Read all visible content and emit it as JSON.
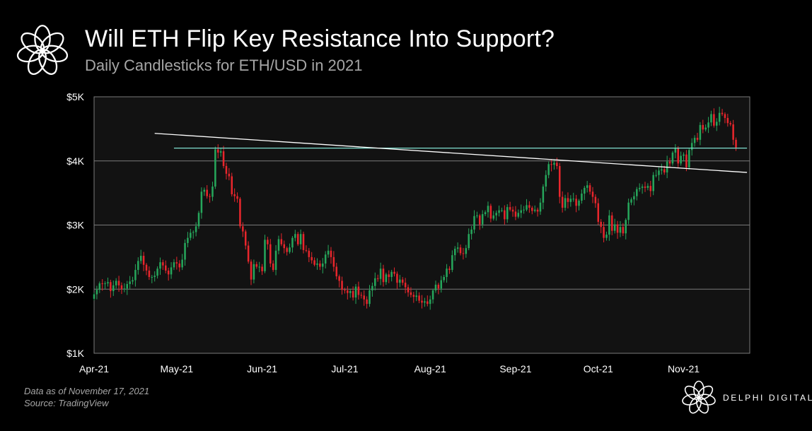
{
  "header": {
    "title": "Will ETH Flip Key Resistance Into Support?",
    "subtitle": "Daily Candlesticks for ETH/USD in 2021",
    "logo_icon": "delphi-flower-icon"
  },
  "footer": {
    "note_line1": "Data as of November 17, 2021",
    "note_line2": "Source: TradingView",
    "brand_name": "DELPHI DIGITAL",
    "brand_icon": "delphi-flower-icon"
  },
  "colors": {
    "background": "#000000",
    "plot_background": "#121212",
    "up_candle": "#26a65b",
    "down_candle": "#e8262c",
    "resistance_line": "#7fe0d0",
    "trend_line": "#ffffff",
    "grid": "#7a7a7a"
  },
  "chart_data": {
    "type": "candlestick",
    "title": "Will ETH Flip Key Resistance Into Support?",
    "subtitle": "Daily Candlesticks for ETH/USD in 2021",
    "x_ticks": [
      "Apr-21",
      "May-21",
      "Jun-21",
      "Jul-21",
      "Aug-21",
      "Sep-21",
      "Oct-21",
      "Nov-21"
    ],
    "x_range": [
      "2021-04-01",
      "2021-11-25"
    ],
    "y_ticks": [
      "$1K",
      "$2K",
      "$3K",
      "$4K",
      "$5K"
    ],
    "y_tick_values": [
      1000,
      2000,
      3000,
      4000,
      5000
    ],
    "ylim": [
      1000,
      5000
    ],
    "grid": "horizontal",
    "start_date": "2021-04-01",
    "closes": [
      1920,
      1990,
      2090,
      2080,
      2090,
      2110,
      1970,
      2060,
      2130,
      2060,
      2000,
      2010,
      2080,
      2120,
      2140,
      2300,
      2440,
      2520,
      2380,
      2290,
      2190,
      2190,
      2210,
      2320,
      2420,
      2370,
      2290,
      2230,
      2340,
      2420,
      2400,
      2340,
      2460,
      2720,
      2800,
      2880,
      2890,
      2980,
      3190,
      3520,
      3550,
      3450,
      3440,
      3600,
      4180,
      4130,
      4150,
      3920,
      3800,
      3760,
      3480,
      3450,
      3410,
      2980,
      2900,
      2680,
      2430,
      2150,
      2390,
      2350,
      2350,
      2280,
      2770,
      2700,
      2400,
      2300,
      2600,
      2780,
      2700,
      2640,
      2580,
      2650,
      2800,
      2860,
      2700,
      2860,
      2610,
      2600,
      2500,
      2450,
      2380,
      2400,
      2350,
      2400,
      2540,
      2600,
      2500,
      2350,
      2200,
      2130,
      1990,
      1980,
      1940,
      1970,
      1870,
      2040,
      1910,
      1900,
      1840,
      1770,
      1980,
      2050,
      2170,
      2160,
      2320,
      2110,
      2230,
      2190,
      2270,
      2240,
      2100,
      2150,
      2100,
      2030,
      1950,
      1910,
      1880,
      1900,
      1820,
      1790,
      1810,
      1770,
      1840,
      1980,
      2070,
      2010,
      2140,
      2190,
      2320,
      2300,
      2530,
      2630,
      2650,
      2560,
      2550,
      2640,
      2860,
      2930,
      3140,
      3150,
      3010,
      3170,
      3200,
      3300,
      3100,
      3150,
      3190,
      3230,
      3230,
      3090,
      3280,
      3240,
      3210,
      3130,
      3190,
      3230,
      3240,
      3310,
      3270,
      3220,
      3240,
      3210,
      3350,
      3600,
      3780,
      3950,
      3940,
      3970,
      3920,
      3440,
      3270,
      3420,
      3360,
      3410,
      3410,
      3300,
      3380,
      3490,
      3580,
      3620,
      3520,
      3440,
      3340,
      3050,
      2970,
      2800,
      2850,
      3150,
      2910,
      3010,
      2880,
      2970,
      2870,
      3080,
      3350,
      3400,
      3450,
      3560,
      3580,
      3600,
      3580,
      3610,
      3530,
      3780,
      3780,
      3850,
      3870,
      3820,
      3990,
      3960,
      4130,
      4200,
      3960,
      4080,
      4100,
      3900,
      4170,
      4280,
      4360,
      4330,
      4560,
      4490,
      4520,
      4600,
      4730,
      4550,
      4610,
      4750,
      4730,
      4670,
      4590,
      4570,
      4330,
      4210
    ],
    "resistance_level": 4200,
    "resistance_line": {
      "x": [
        "2021-04-30",
        "2021-11-24"
      ],
      "y": [
        4200,
        4200
      ]
    },
    "trend_line": {
      "x": [
        "2021-04-23",
        "2021-11-24"
      ],
      "y": [
        4430,
        3820
      ]
    }
  }
}
